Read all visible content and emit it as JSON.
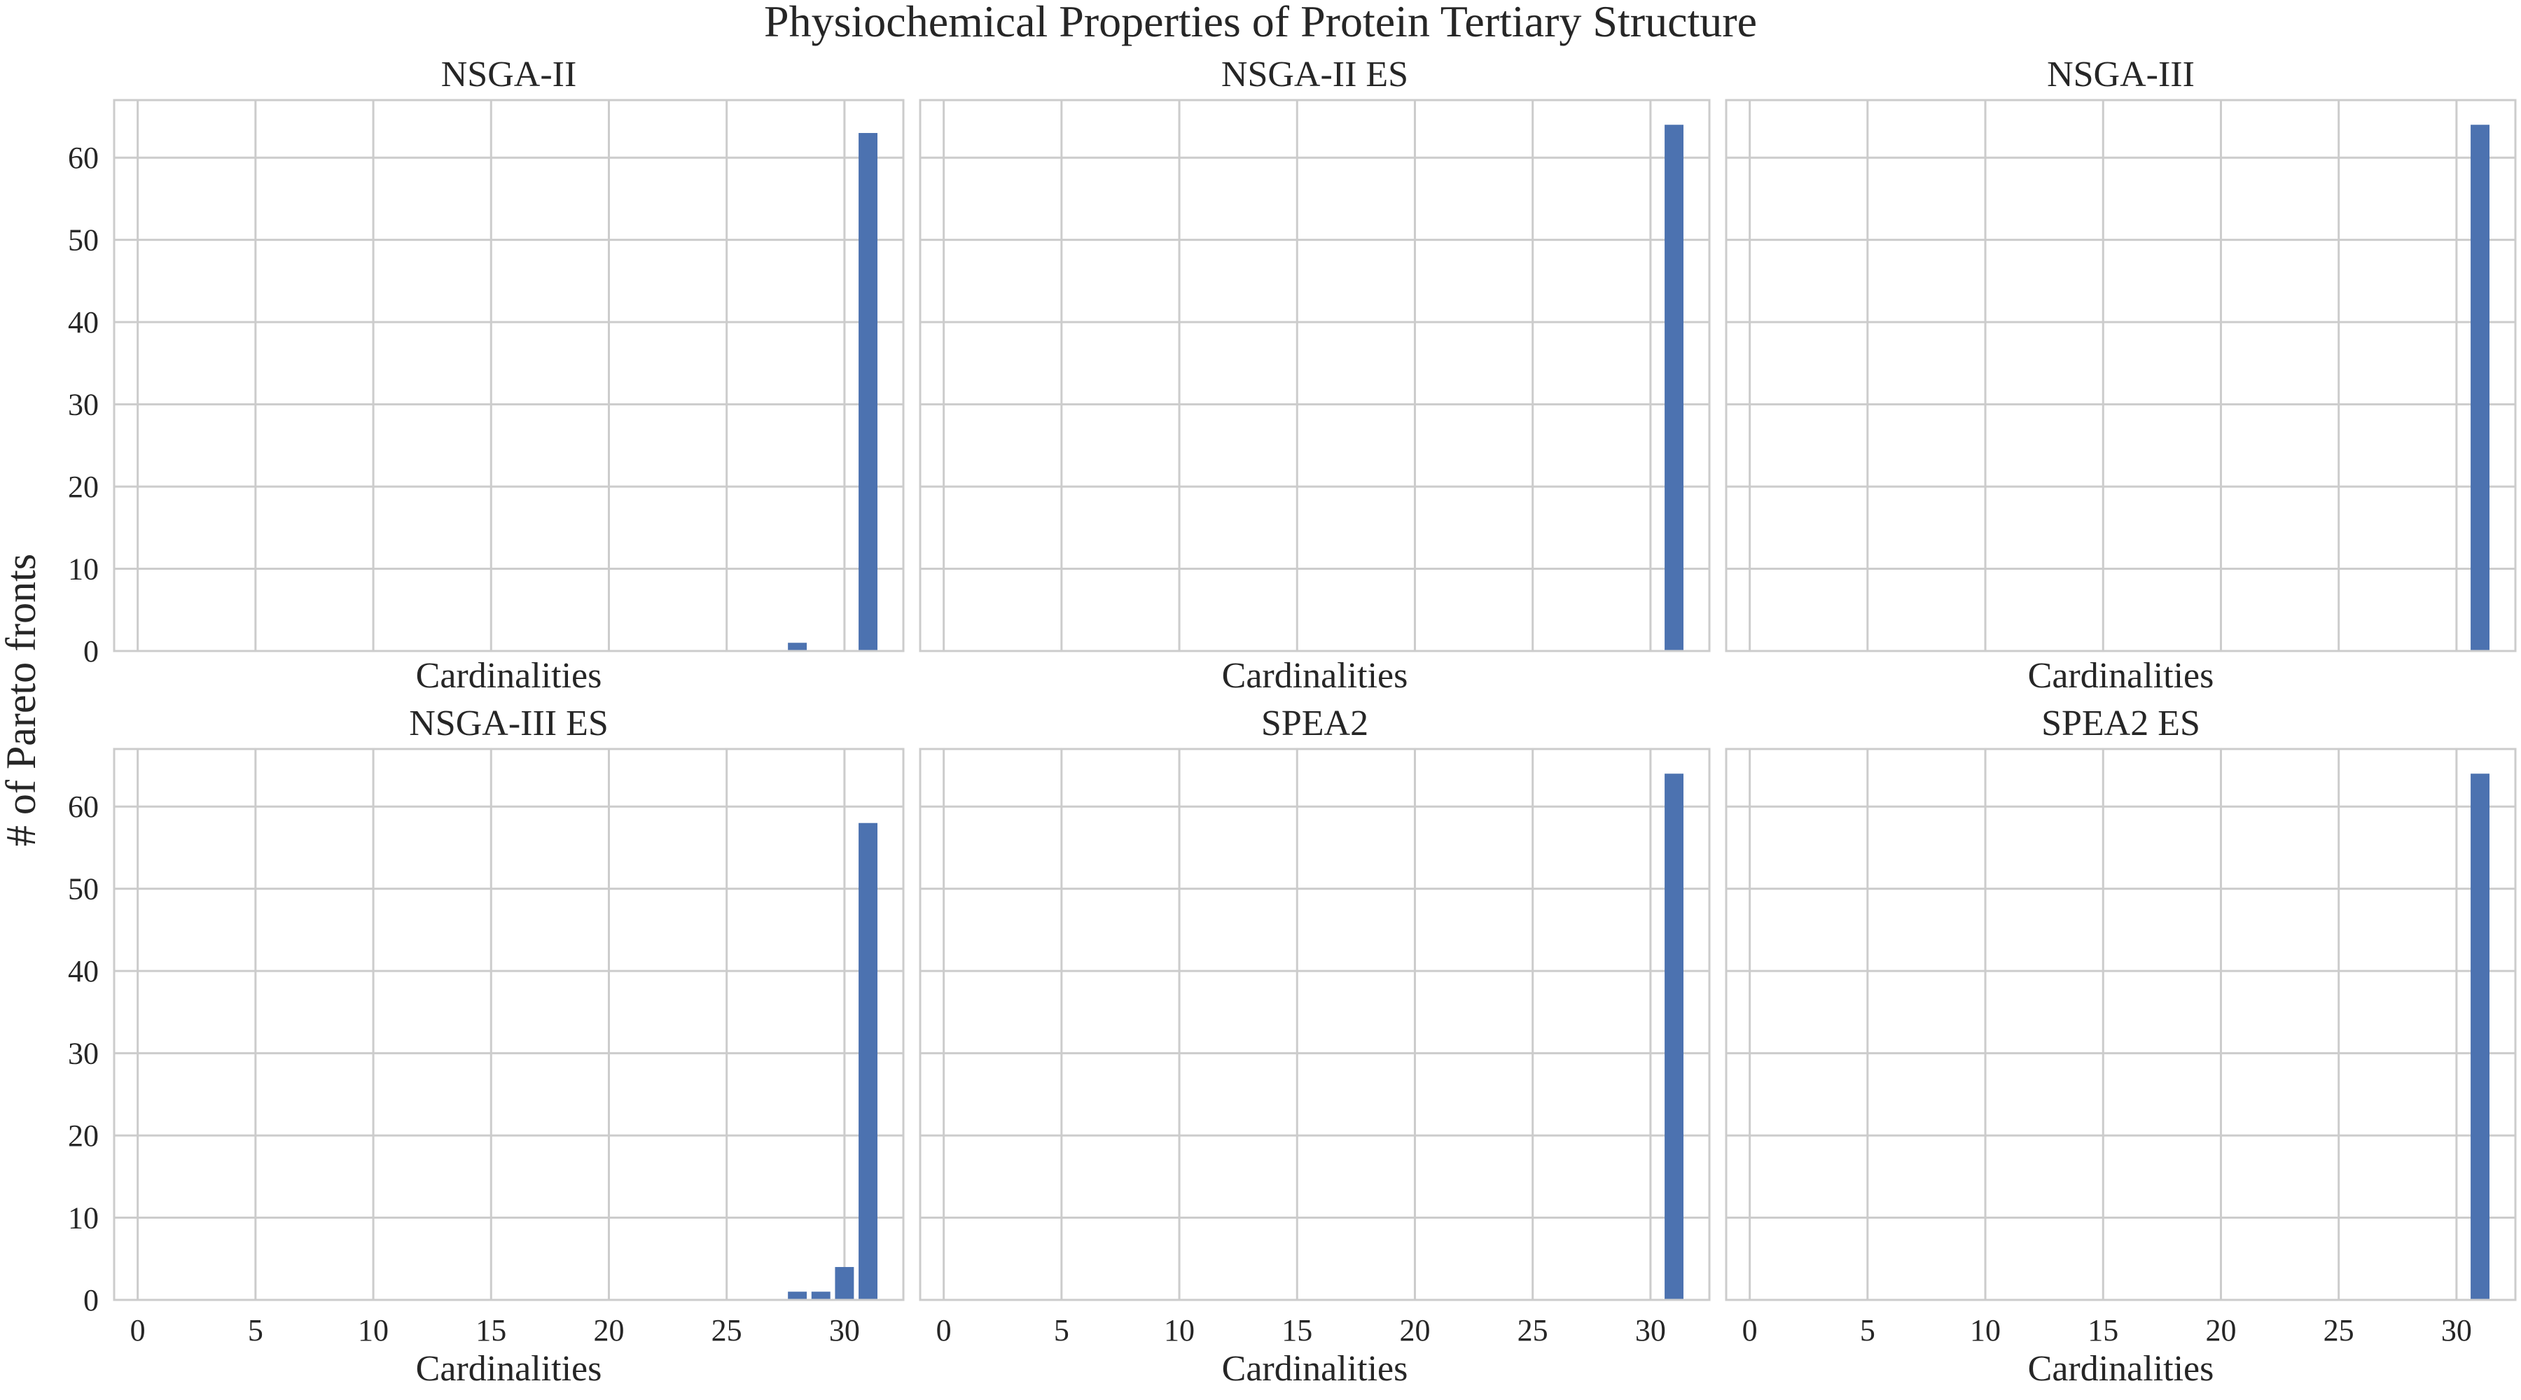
{
  "figure": {
    "title": "Physiochemical Properties of Protein Tertiary Structure",
    "ylabel": "# of Pareto fronts"
  },
  "chart_data": [
    {
      "type": "bar",
      "title": "NSGA-II",
      "xlabel": "Cardinalities",
      "ylabel": "# of Pareto fronts",
      "xlim": [
        -1,
        32.5
      ],
      "ylim": [
        0,
        67
      ],
      "xticks": [
        0,
        5,
        10,
        15,
        20,
        25,
        30
      ],
      "yticks": [
        0,
        10,
        20,
        30,
        40,
        50,
        60
      ],
      "grid": true,
      "color": "#4c72b0",
      "x": [
        28,
        31
      ],
      "values": [
        1,
        63
      ]
    },
    {
      "type": "bar",
      "title": "NSGA-II ES",
      "xlabel": "Cardinalities",
      "ylabel": "# of Pareto fronts",
      "xlim": [
        -1,
        32.5
      ],
      "ylim": [
        0,
        67
      ],
      "xticks": [
        0,
        5,
        10,
        15,
        20,
        25,
        30
      ],
      "yticks": [
        0,
        10,
        20,
        30,
        40,
        50,
        60
      ],
      "grid": true,
      "color": "#4c72b0",
      "x": [
        31
      ],
      "values": [
        64
      ]
    },
    {
      "type": "bar",
      "title": "NSGA-III",
      "xlabel": "Cardinalities",
      "ylabel": "# of Pareto fronts",
      "xlim": [
        -1,
        32.5
      ],
      "ylim": [
        0,
        67
      ],
      "xticks": [
        0,
        5,
        10,
        15,
        20,
        25,
        30
      ],
      "yticks": [
        0,
        10,
        20,
        30,
        40,
        50,
        60
      ],
      "grid": true,
      "color": "#4c72b0",
      "x": [
        31
      ],
      "values": [
        64
      ]
    },
    {
      "type": "bar",
      "title": "NSGA-III ES",
      "xlabel": "Cardinalities",
      "ylabel": "# of Pareto fronts",
      "xlim": [
        -1,
        32.5
      ],
      "ylim": [
        0,
        67
      ],
      "xticks": [
        0,
        5,
        10,
        15,
        20,
        25,
        30
      ],
      "yticks": [
        0,
        10,
        20,
        30,
        40,
        50,
        60
      ],
      "grid": true,
      "color": "#4c72b0",
      "x": [
        28,
        29,
        30,
        31
      ],
      "values": [
        1,
        1,
        4,
        58
      ]
    },
    {
      "type": "bar",
      "title": "SPEA2",
      "xlabel": "Cardinalities",
      "ylabel": "# of Pareto fronts",
      "xlim": [
        -1,
        32.5
      ],
      "ylim": [
        0,
        67
      ],
      "xticks": [
        0,
        5,
        10,
        15,
        20,
        25,
        30
      ],
      "yticks": [
        0,
        10,
        20,
        30,
        40,
        50,
        60
      ],
      "grid": true,
      "color": "#4c72b0",
      "x": [
        31
      ],
      "values": [
        64
      ]
    },
    {
      "type": "bar",
      "title": "SPEA2 ES",
      "xlabel": "Cardinalities",
      "ylabel": "# of Pareto fronts",
      "xlim": [
        -1,
        32.5
      ],
      "ylim": [
        0,
        67
      ],
      "xticks": [
        0,
        5,
        10,
        15,
        20,
        25,
        30
      ],
      "yticks": [
        0,
        10,
        20,
        30,
        40,
        50,
        60
      ],
      "grid": true,
      "color": "#4c72b0",
      "x": [
        31
      ],
      "values": [
        64
      ]
    }
  ]
}
